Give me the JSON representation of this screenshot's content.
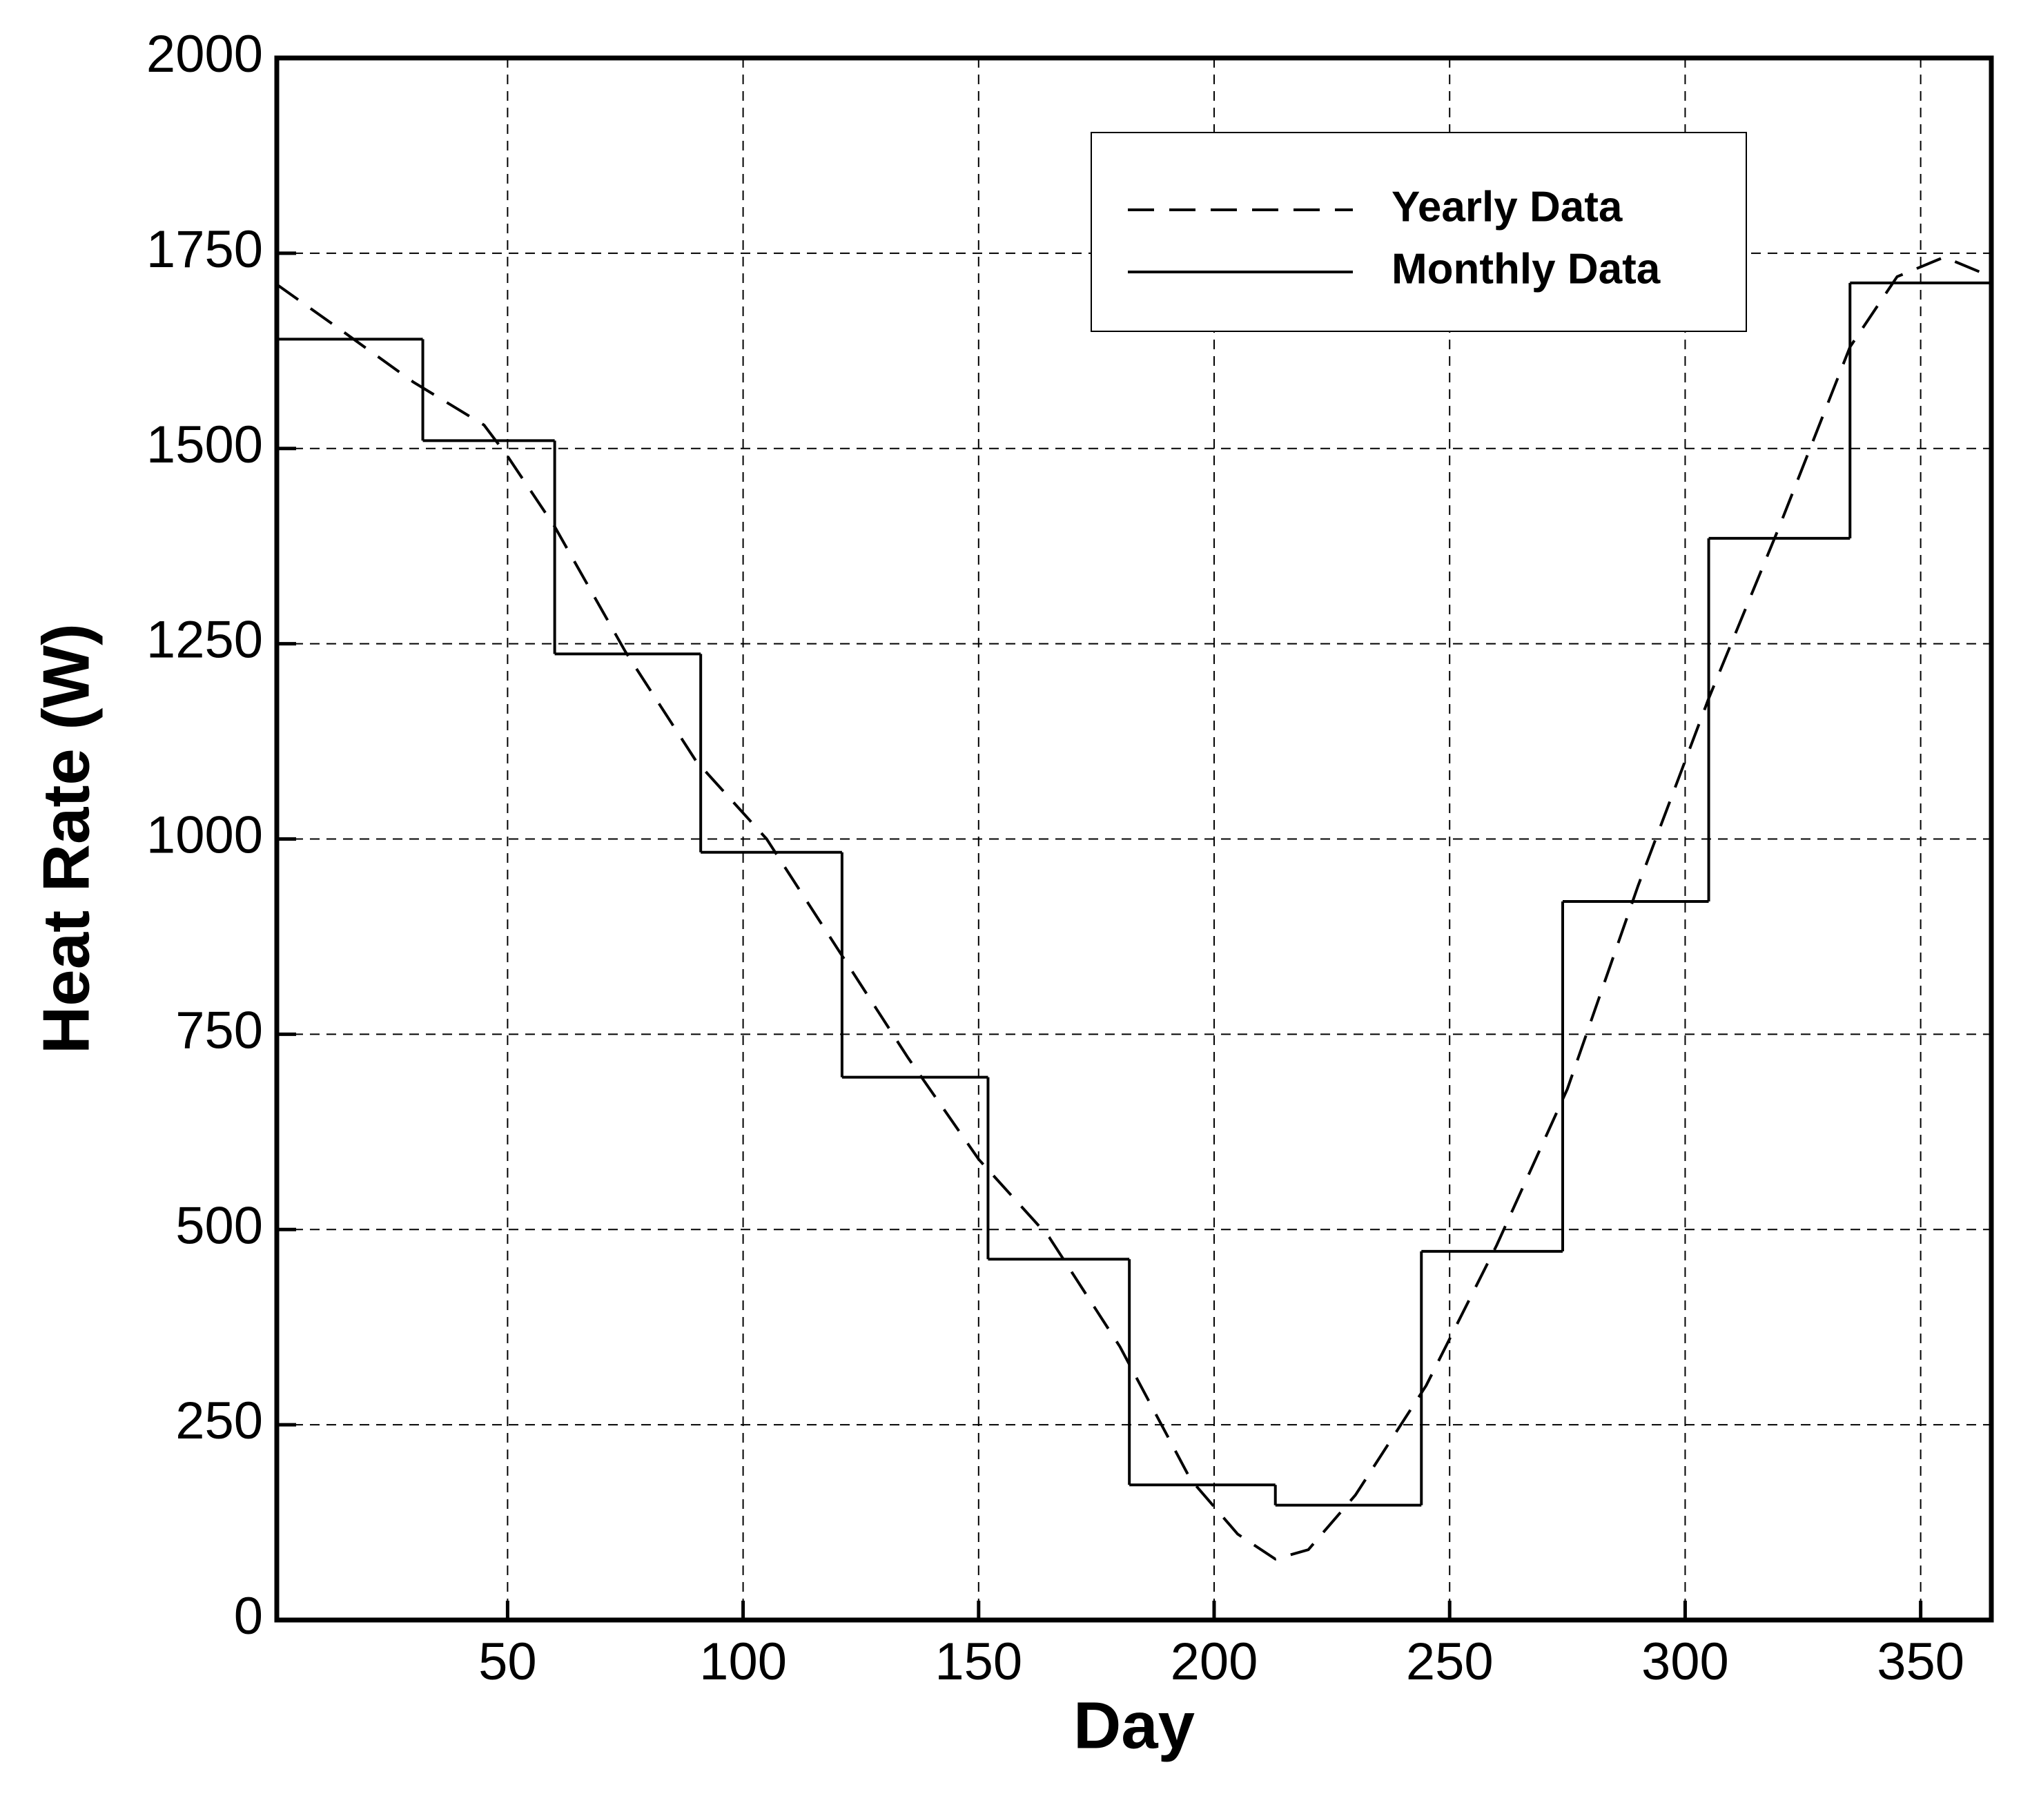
{
  "chart_data": {
    "type": "line",
    "x_label": "Day",
    "y_label": "Heat Rate (W)",
    "xlim": [
      1,
      365
    ],
    "ylim": [
      0,
      2000
    ],
    "xticks": [
      50,
      100,
      150,
      200,
      250,
      300,
      350
    ],
    "yticks": [
      0,
      250,
      500,
      750,
      1000,
      1250,
      1500,
      1750,
      2000
    ],
    "grid": true,
    "legend": "upper right",
    "series": [
      {
        "name": "Yearly Data",
        "color": "#000000",
        "style": "dashed",
        "x": [
          1,
          15,
          30,
          45,
          50,
          60,
          75,
          90,
          105,
          120,
          135,
          150,
          165,
          180,
          195,
          205,
          213,
          220,
          230,
          245,
          260,
          275,
          290,
          305,
          320,
          335,
          345,
          355,
          365
        ],
        "values": [
          1710,
          1650,
          1585,
          1530,
          1490,
          1400,
          1240,
          1100,
          1000,
          860,
          720,
          590,
          490,
          350,
          180,
          110,
          78,
          90,
          160,
          300,
          480,
          680,
          940,
          1180,
          1400,
          1630,
          1720,
          1745,
          1720
        ]
      },
      {
        "name": "Monthly Data",
        "color": "#000000",
        "style": "step",
        "x": [
          1,
          32,
          60,
          91,
          121,
          152,
          182,
          213,
          244,
          274,
          305,
          335
        ],
        "values": [
          1640,
          1510,
          1237,
          983,
          695,
          462,
          173,
          147,
          472,
          920,
          1385,
          1712
        ]
      }
    ]
  }
}
